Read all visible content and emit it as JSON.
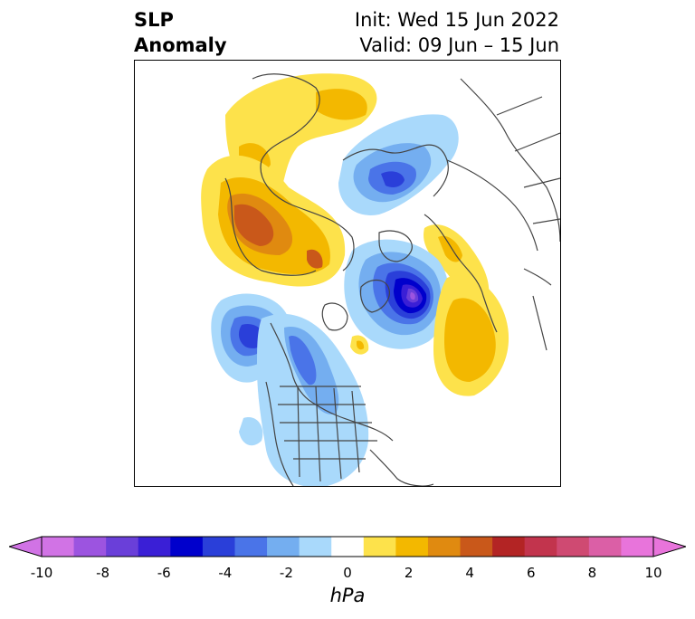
{
  "title": {
    "left_line1": "SLP",
    "left_line2": "Anomaly",
    "init": "Init: Wed 15 Jun 2022",
    "valid": "Valid: 09 Jun – 15 Jun"
  },
  "colorbar": {
    "unit": "hPa",
    "ticks": [
      "-10",
      "-8",
      "-6",
      "-4",
      "-2",
      "0",
      "2",
      "4",
      "6",
      "8",
      "10"
    ],
    "levels": [
      -10,
      -9,
      -8,
      -7,
      -6,
      -5,
      -4,
      -3,
      -2,
      -1,
      1,
      2,
      3,
      4,
      5,
      6,
      7,
      8,
      9,
      10
    ],
    "colors": [
      "#d173e5",
      "#9c54e0",
      "#6a3fd9",
      "#3a1fd6",
      "#0000cc",
      "#2a3fd9",
      "#4a74e8",
      "#74aef0",
      "#a9d9fb",
      "#ffffff",
      "#fde24b",
      "#f3b800",
      "#e08a10",
      "#c9581a",
      "#b32424",
      "#c2344d",
      "#cf4a72",
      "#db5fa6",
      "#e874db"
    ],
    "under_color": "#d173e5",
    "over_color": "#e874db"
  },
  "map": {
    "projection": "north-polar-stereographic",
    "variable": "sea level pressure anomaly"
  }
}
